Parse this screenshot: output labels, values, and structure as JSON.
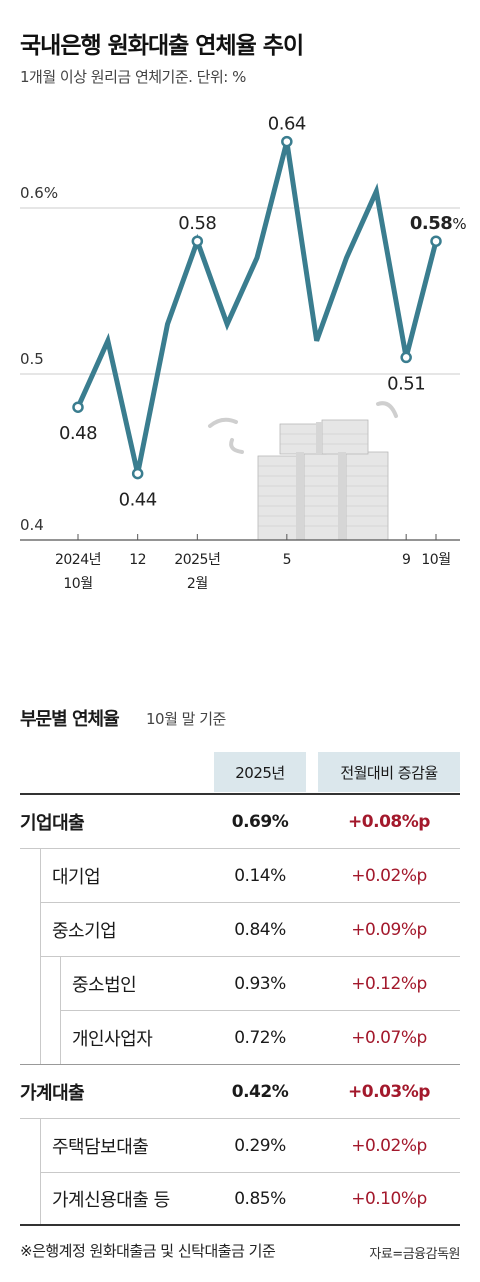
{
  "chart_data": {
    "type": "line",
    "title": "국내은행 원화대출 연체율 추이",
    "subtitle": "1개월 이상 원리금 연체기준. 단위: %",
    "x": [
      "2024-10",
      "2024-11",
      "2024-12",
      "2025-01",
      "2025-02",
      "2025-03",
      "2025-04",
      "2025-05",
      "2025-06",
      "2025-07",
      "2025-08",
      "2025-09",
      "2025-10"
    ],
    "values": [
      0.48,
      0.52,
      0.44,
      0.53,
      0.58,
      0.53,
      0.57,
      0.64,
      0.52,
      0.57,
      0.61,
      0.51,
      0.58
    ],
    "ylim": [
      0.4,
      0.66
    ],
    "yticks": [
      {
        "value": 0.6,
        "label": "0.6%"
      },
      {
        "value": 0.5,
        "label": "0.5"
      },
      {
        "value": 0.4,
        "label": "0.4"
      }
    ],
    "xticks": [
      {
        "index": 0,
        "line1": "2024년",
        "line2": "10월"
      },
      {
        "index": 2,
        "line1": "12",
        "line2": ""
      },
      {
        "index": 4,
        "line1": "2025년",
        "line2": "2월"
      },
      {
        "index": 7,
        "line1": "5",
        "line2": ""
      },
      {
        "index": 11,
        "line1": "9",
        "line2": ""
      },
      {
        "index": 12,
        "line1": "10월",
        "line2": ""
      }
    ],
    "data_labels": [
      {
        "index": 0,
        "text": "0.48",
        "pos": "below"
      },
      {
        "index": 2,
        "text": "0.44",
        "pos": "below"
      },
      {
        "index": 4,
        "text": "0.58",
        "pos": "above"
      },
      {
        "index": 7,
        "text": "0.64",
        "pos": "above"
      },
      {
        "index": 11,
        "text": "0.51",
        "pos": "below"
      },
      {
        "index": 12,
        "text": "0.58",
        "pos": "above",
        "unit": "%"
      }
    ],
    "line_color": "#3a7d8f",
    "grid": true
  },
  "table": {
    "title": "부문별 연체율",
    "subtitle": "10월 말 기준",
    "col1": "2025년",
    "col2": "전월대비 증감율",
    "rows": [
      {
        "label": "기업대출",
        "value": "0.69%",
        "change": "+0.08%p"
      },
      {
        "label": "대기업",
        "value": "0.14%",
        "change": "+0.02%p"
      },
      {
        "label": "중소기업",
        "value": "0.84%",
        "change": "+0.09%p"
      },
      {
        "label": "중소법인",
        "value": "0.93%",
        "change": "+0.12%p"
      },
      {
        "label": "개인사업자",
        "value": "0.72%",
        "change": "+0.07%p"
      },
      {
        "label": "가계대출",
        "value": "0.42%",
        "change": "+0.03%p"
      },
      {
        "label": "주택담보대출",
        "value": "0.29%",
        "change": "+0.02%p"
      },
      {
        "label": "가계신용대출 등",
        "value": "0.85%",
        "change": "+0.10%p"
      }
    ],
    "accent_color": "#a3192c"
  },
  "footnote": "※은행계정 원화대출금 및 신탁대출금 기준",
  "source": "자료=금융감독원"
}
